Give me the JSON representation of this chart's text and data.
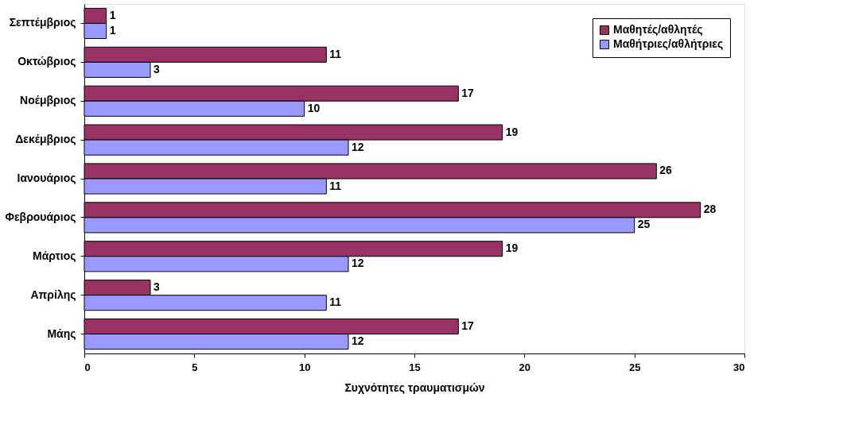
{
  "chart_data": {
    "type": "bar",
    "orientation": "horizontal",
    "xlabel": "Συχνότητες τραυματισμών",
    "categories": [
      "Σεπτέμβριος",
      "Οκτώβριος",
      "Νοέμβριος",
      "Δεκέμβριος",
      "Ιανουάριος",
      "Φεβρουάριος",
      "Μάρτιος",
      "Απρίλης",
      "Μάης"
    ],
    "series": [
      {
        "name": "Μαθητές/αθλητές",
        "color": "#993366",
        "values": [
          1,
          11,
          17,
          19,
          26,
          28,
          19,
          3,
          17
        ]
      },
      {
        "name": "Μαθήτριες/αθλήτριες",
        "color": "#9999ff",
        "values": [
          1,
          3,
          10,
          12,
          11,
          25,
          12,
          11,
          12
        ]
      }
    ],
    "xlim": [
      0,
      30
    ],
    "xticks": [
      0,
      5,
      10,
      15,
      20,
      25,
      30
    ],
    "grid": false,
    "legend": "top right",
    "data_labels": true
  }
}
